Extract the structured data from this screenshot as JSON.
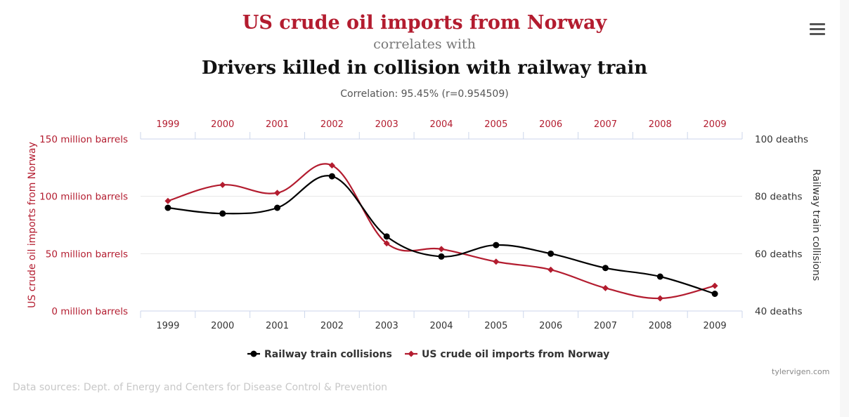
{
  "header": {
    "title": "US crude oil imports from Norway",
    "connector": "correlates with",
    "subtitle": "Drivers killed in collision with railway train",
    "correlation": "Correlation: 95.45% (r=0.954509)"
  },
  "menu": {
    "icon": "hamburger-menu-icon"
  },
  "chart_data": {
    "type": "line",
    "categories": [
      "1999",
      "2000",
      "2001",
      "2002",
      "2003",
      "2004",
      "2005",
      "2006",
      "2007",
      "2008",
      "2009"
    ],
    "left_axis": {
      "label": "US crude oil imports from Norway",
      "ticks": [
        0,
        50,
        100,
        150
      ],
      "tick_labels": [
        "0 million barrels",
        "50 million barrels",
        "100 million barrels",
        "150 million barrels"
      ],
      "range": [
        0,
        150
      ]
    },
    "right_axis": {
      "label": "Railway train collisions",
      "ticks": [
        40,
        60,
        80,
        100
      ],
      "tick_labels": [
        "40 deaths",
        "60 deaths",
        "80 deaths",
        "100 deaths"
      ],
      "range": [
        40,
        100
      ]
    },
    "grid": true,
    "legend_position": "bottom-center",
    "series": [
      {
        "name": "Railway train collisions",
        "axis": "right",
        "color": "#000000",
        "marker": "circle",
        "values": [
          76,
          74,
          76,
          87,
          66,
          59,
          63,
          60,
          55,
          52,
          46
        ]
      },
      {
        "name": "US crude oil imports from Norway",
        "axis": "left",
        "color": "#b31c2f",
        "marker": "diamond",
        "values": [
          96,
          110,
          103,
          127,
          59,
          54,
          43,
          36,
          20,
          11,
          22
        ]
      }
    ]
  },
  "colors": {
    "accent": "#b31c2f",
    "axis": "#ccd6eb",
    "grid": "#e6e6e6"
  },
  "footer": {
    "credit": "tylervigen.com",
    "sources": "Data sources: Dept. of Energy and Centers for Disease Control & Prevention"
  }
}
